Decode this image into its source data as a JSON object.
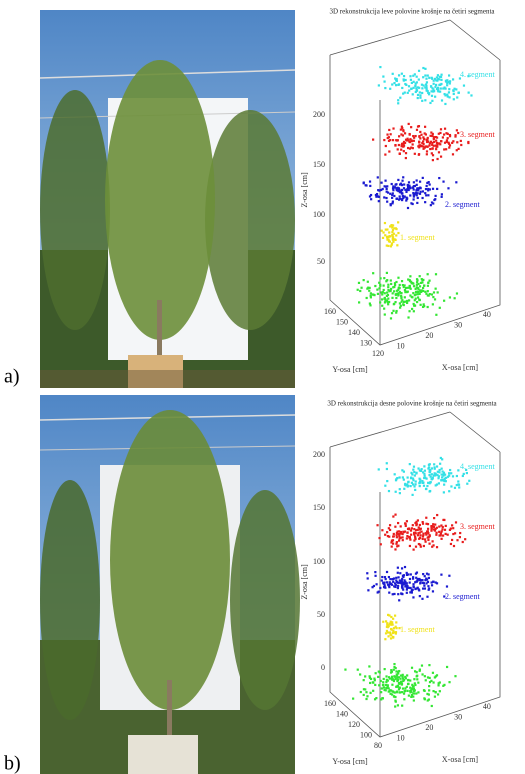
{
  "panels": [
    {
      "label": "a)",
      "title": "3D rekonstrukcija leve polovine krošnje na četiri segmenta",
      "segments": [
        "4. segment",
        "3. segment",
        "2. segment",
        "1. segment"
      ],
      "z_axis": "Z-osa [cm]",
      "y_axis": "Y-osa [cm]",
      "x_axis": "X-osa [cm]",
      "z_ticks": [
        "50",
        "100",
        "150",
        "200"
      ],
      "y_ticks": [
        "160",
        "150",
        "140",
        "130",
        "120"
      ],
      "x_ticks": [
        "10",
        "20",
        "30",
        "40"
      ]
    },
    {
      "label": "b)",
      "title": "3D rekonstrukcija desne polovine krošnje na četiri segmenta",
      "segments": [
        "4. segment",
        "3. segment",
        "2. segment",
        "1. segment"
      ],
      "z_axis": "Z-osa [cm]",
      "y_axis": "Y-osa [cm]",
      "x_axis": "X-osa [cm]",
      "z_ticks": [
        "0",
        "50",
        "100",
        "150",
        "200"
      ],
      "y_ticks": [
        "160",
        "140",
        "120",
        "100",
        "80"
      ],
      "x_ticks": [
        "10",
        "20",
        "30",
        "40"
      ]
    }
  ]
}
